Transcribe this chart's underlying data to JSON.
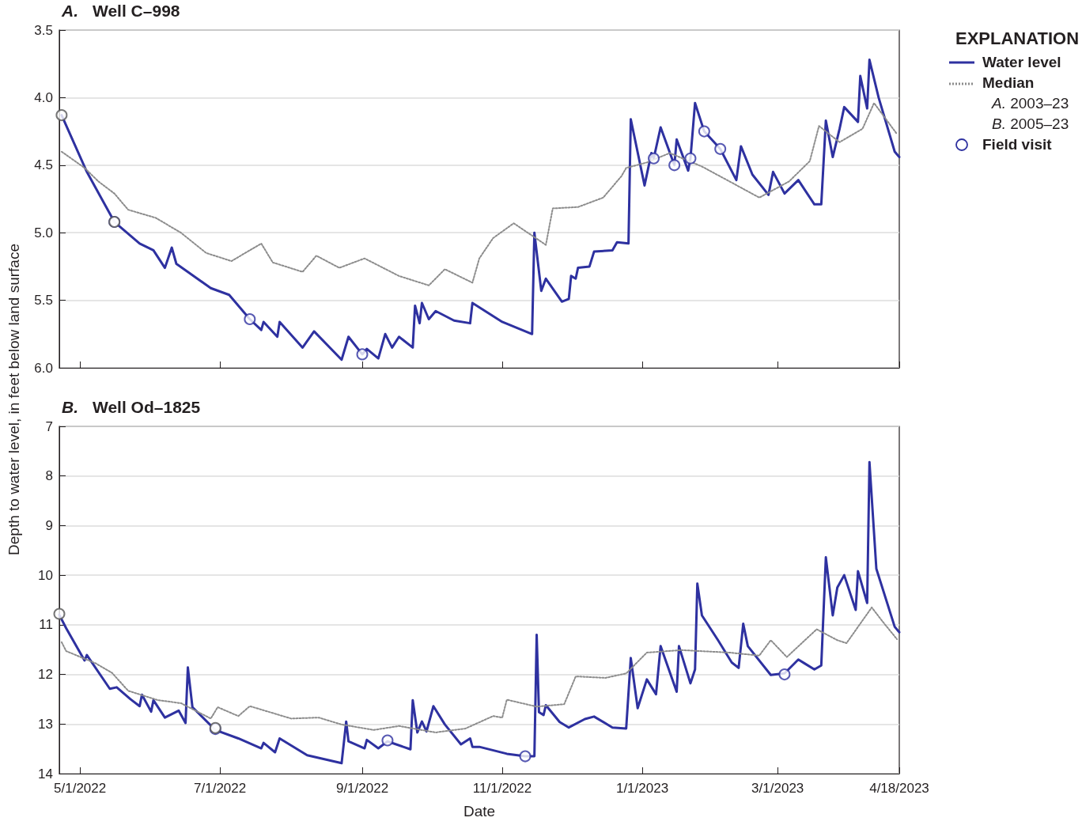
{
  "chart_data": [
    {
      "type": "line",
      "title": "A. Well C–998",
      "ylabel": "Depth to water level, in feet below land surface",
      "legend_title": "EXPLANATION",
      "legend": "right",
      "grid": "y",
      "tick_labels": "y",
      "annotations": [
        "A. 2003–23",
        "B. 2005–23"
      ],
      "xlim": [
        "2022-04-22",
        "2023-04-23"
      ],
      "xticks": [
        {
          "value": "2022-05-01",
          "label": null
        },
        {
          "value": "2022-07-01",
          "label": null
        },
        {
          "value": "2022-09-01",
          "label": null
        },
        {
          "value": "2022-11-01",
          "label": null
        },
        {
          "value": "2023-01-01",
          "label": null
        },
        {
          "value": "2023-03-01",
          "label": null
        },
        {
          "value": "2023-04-23",
          "label": null
        }
      ],
      "ylim": [
        6.0,
        3.5
      ],
      "yticks": [
        3.5,
        {
          "value": 4,
          "label": "4.0"
        },
        4.5,
        {
          "value": 5,
          "label": "5.0"
        },
        5.5,
        {
          "value": 6,
          "label": "6.0"
        }
      ],
      "series": [
        {
          "name": "Water level",
          "color": "#2e31a0",
          "line_style": "solid",
          "marker": "none",
          "x": [
            "2022-04-23",
            "2022-05-04",
            "2022-05-16",
            "2022-05-27",
            "2022-06-02",
            "2022-06-07",
            "2022-06-10",
            "2022-06-12",
            "2022-06-17",
            "2022-06-27",
            "2022-07-05",
            "2022-07-14",
            "2022-07-19",
            "2022-07-20",
            "2022-07-26",
            "2022-07-27",
            "2022-08-06",
            "2022-08-11",
            "2022-08-23",
            "2022-08-26",
            "2022-09-01",
            "2022-09-03",
            "2022-09-08",
            "2022-09-11",
            "2022-09-14",
            "2022-09-17",
            "2022-09-23",
            "2022-09-24",
            "2022-09-26",
            "2022-09-27",
            "2022-09-30",
            "2022-10-03",
            "2022-10-11",
            "2022-10-18",
            "2022-10-19",
            "2022-11-01",
            "2022-11-14",
            "2022-11-15",
            "2022-11-18",
            "2022-11-20",
            "2022-11-27",
            "2022-11-30",
            "2022-12-01",
            "2022-12-03",
            "2022-12-04",
            "2022-12-09",
            "2022-12-11",
            "2022-12-19",
            "2022-12-21",
            "2022-12-26",
            "2022-12-27",
            "2023-01-02",
            "2023-01-05",
            "2023-01-06",
            "2023-01-09",
            "2023-01-15",
            "2023-01-16",
            "2023-01-21",
            "2023-01-22",
            "2023-01-24",
            "2023-01-28",
            "2023-02-04",
            "2023-02-11",
            "2023-02-13",
            "2023-02-18",
            "2023-02-25",
            "2023-02-27",
            "2023-03-04",
            "2023-03-10",
            "2023-03-17",
            "2023-03-20",
            "2023-03-22",
            "2023-03-25",
            "2023-03-28",
            "2023-03-30",
            "2023-04-05",
            "2023-04-06",
            "2023-04-09",
            "2023-04-10",
            "2023-04-14",
            "2023-04-21",
            "2023-04-23"
          ],
          "values": [
            4.13,
            4.55,
            4.92,
            5.08,
            5.13,
            5.26,
            5.11,
            5.23,
            5.29,
            5.41,
            5.46,
            5.64,
            5.72,
            5.66,
            5.77,
            5.66,
            5.85,
            5.73,
            5.94,
            5.77,
            5.9,
            5.86,
            5.93,
            5.75,
            5.85,
            5.77,
            5.85,
            5.54,
            5.67,
            5.52,
            5.64,
            5.58,
            5.65,
            5.67,
            5.52,
            5.66,
            5.75,
            5.0,
            5.43,
            5.34,
            5.51,
            5.49,
            5.32,
            5.34,
            5.26,
            5.25,
            5.14,
            5.13,
            5.07,
            5.08,
            4.16,
            4.65,
            4.41,
            4.45,
            4.22,
            4.5,
            4.31,
            4.54,
            4.45,
            4.04,
            4.25,
            4.38,
            4.61,
            4.36,
            4.57,
            4.72,
            4.55,
            4.71,
            4.61,
            4.79,
            4.79,
            4.17,
            4.44,
            4.23,
            4.07,
            4.18,
            3.84,
            4.08,
            3.72,
            4.0,
            4.4,
            4.44
          ]
        },
        {
          "name": "Median",
          "color": "#8c8c8c",
          "line_style": "dotted",
          "marker": "none",
          "x": [
            "2022-04-23",
            "2022-05-03",
            "2022-05-09",
            "2022-05-16",
            "2022-05-22",
            "2022-06-03",
            "2022-06-14",
            "2022-06-25",
            "2022-07-06",
            "2022-07-19",
            "2022-07-24",
            "2022-08-06",
            "2022-08-12",
            "2022-08-22",
            "2022-09-02",
            "2022-09-17",
            "2022-09-30",
            "2022-10-07",
            "2022-10-19",
            "2022-10-22",
            "2022-10-28",
            "2022-11-06",
            "2022-11-20",
            "2022-11-23",
            "2022-12-04",
            "2022-12-15",
            "2022-12-23",
            "2022-12-25",
            "2023-01-03",
            "2023-01-13",
            "2023-01-27",
            "2023-02-08",
            "2023-02-21",
            "2023-03-06",
            "2023-03-15",
            "2023-03-19",
            "2023-03-28",
            "2023-04-07",
            "2023-04-12",
            "2023-04-22"
          ],
          "values": [
            4.4,
            4.52,
            4.62,
            4.71,
            4.83,
            4.89,
            5.0,
            5.15,
            5.21,
            5.08,
            5.22,
            5.29,
            5.17,
            5.26,
            5.19,
            5.32,
            5.39,
            5.27,
            5.37,
            5.19,
            5.04,
            4.93,
            5.09,
            4.82,
            4.81,
            4.74,
            4.58,
            4.52,
            4.48,
            4.41,
            4.51,
            4.62,
            4.74,
            4.62,
            4.47,
            4.21,
            4.33,
            4.23,
            4.04,
            4.27
          ]
        },
        {
          "name": "Field visit",
          "type": "scatter",
          "color": "#2e31a0",
          "marker": "circle",
          "x": [
            "2022-05-16",
            "2022-07-14",
            "2022-09-01",
            "2023-01-06",
            "2023-01-15",
            "2023-01-22",
            "2023-01-28",
            "2023-02-04"
          ],
          "values": [
            4.92,
            5.64,
            5.9,
            4.45,
            4.5,
            4.45,
            4.25,
            4.38
          ]
        },
        {
          "type": "scatter",
          "color": "#555555",
          "marker": "circle",
          "x": [
            "2022-04-23",
            "2022-05-16"
          ],
          "values": [
            4.13,
            4.92
          ]
        }
      ]
    },
    {
      "type": "line",
      "title": "B. Well Od–1825",
      "xlabel": "Date",
      "grid": "y",
      "xlim": [
        "2022-04-22",
        "2023-04-23"
      ],
      "xticks": [
        {
          "value": "2022-05-01",
          "label": "5/1/2022"
        },
        {
          "value": "2022-07-01",
          "label": "7/1/2022"
        },
        {
          "value": "2022-09-01",
          "label": "9/1/2022"
        },
        {
          "value": "2022-11-01",
          "label": "11/1/2022"
        },
        {
          "value": "2023-01-01",
          "label": "1/1/2023"
        },
        {
          "value": "2023-03-01",
          "label": "3/1/2023"
        },
        {
          "value": "2023-04-23",
          "label": "4/18/2023"
        }
      ],
      "ylim": [
        14,
        7
      ],
      "yticks": [
        7,
        8,
        9,
        10,
        11,
        12,
        13,
        14
      ],
      "series": [
        {
          "color": "#2e31a0",
          "line_style": "solid",
          "marker": "none",
          "x": [
            "2022-04-22",
            "2022-04-25",
            "2022-05-03",
            "2022-05-04",
            "2022-05-14",
            "2022-05-17",
            "2022-05-23",
            "2022-05-27",
            "2022-05-28",
            "2022-06-01",
            "2022-06-02",
            "2022-06-07",
            "2022-06-13",
            "2022-06-16",
            "2022-06-17",
            "2022-06-19",
            "2022-06-29",
            "2022-07-09",
            "2022-07-19",
            "2022-07-20",
            "2022-07-25",
            "2022-07-27",
            "2022-08-08",
            "2022-08-23",
            "2022-08-25",
            "2022-08-26",
            "2022-09-02",
            "2022-09-03",
            "2022-09-08",
            "2022-09-12",
            "2022-09-22",
            "2022-09-23",
            "2022-09-25",
            "2022-09-27",
            "2022-09-29",
            "2022-10-02",
            "2022-10-07",
            "2022-10-14",
            "2022-10-18",
            "2022-10-19",
            "2022-10-22",
            "2022-11-03",
            "2022-11-11",
            "2022-11-15",
            "2022-11-16",
            "2022-11-17",
            "2022-11-19",
            "2022-11-20",
            "2022-11-26",
            "2022-11-30",
            "2022-12-07",
            "2022-12-11",
            "2022-12-19",
            "2022-12-25",
            "2022-12-27",
            "2022-12-30",
            "2023-01-03",
            "2023-01-07",
            "2023-01-09",
            "2023-01-16",
            "2023-01-17",
            "2023-01-22",
            "2023-01-24",
            "2023-01-25",
            "2023-01-27",
            "2023-02-03",
            "2023-02-09",
            "2023-02-12",
            "2023-02-14",
            "2023-02-16",
            "2023-02-26",
            "2023-03-04",
            "2023-03-10",
            "2023-03-17",
            "2023-03-20",
            "2023-03-22",
            "2023-03-25",
            "2023-03-27",
            "2023-03-30",
            "2023-04-04",
            "2023-04-05",
            "2023-04-09",
            "2023-04-10",
            "2023-04-13",
            "2023-04-21",
            "2023-04-23"
          ],
          "values": [
            10.8,
            11.07,
            11.72,
            11.61,
            12.29,
            12.26,
            12.5,
            12.64,
            12.41,
            12.75,
            12.52,
            12.87,
            12.73,
            12.98,
            11.86,
            12.66,
            13.12,
            13.29,
            13.49,
            13.38,
            13.57,
            13.29,
            13.63,
            13.79,
            12.95,
            13.35,
            13.49,
            13.32,
            13.49,
            13.35,
            13.51,
            12.52,
            13.17,
            12.95,
            13.15,
            12.64,
            13.01,
            13.41,
            13.29,
            13.46,
            13.46,
            13.6,
            13.65,
            13.65,
            11.2,
            12.76,
            12.82,
            12.62,
            12.96,
            13.07,
            12.9,
            12.85,
            13.07,
            13.09,
            11.67,
            12.68,
            12.1,
            12.4,
            11.43,
            12.35,
            11.43,
            12.18,
            11.9,
            10.17,
            10.81,
            11.31,
            11.76,
            11.87,
            10.98,
            11.43,
            12.01,
            11.98,
            11.7,
            11.9,
            11.82,
            9.64,
            10.81,
            10.25,
            10.0,
            10.7,
            9.92,
            10.56,
            7.72,
            9.87,
            11.04,
            11.15
          ]
        },
        {
          "color": "#8c8c8c",
          "line_style": "dotted",
          "marker": "none",
          "x": [
            "2022-04-23",
            "2022-04-25",
            "2022-05-08",
            "2022-05-15",
            "2022-05-22",
            "2022-06-04",
            "2022-06-14",
            "2022-06-27",
            "2022-06-30",
            "2022-07-09",
            "2022-07-14",
            "2022-08-01",
            "2022-08-13",
            "2022-08-23",
            "2022-09-06",
            "2022-09-17",
            "2022-10-03",
            "2022-10-16",
            "2022-10-28",
            "2022-11-01",
            "2022-11-03",
            "2022-11-16",
            "2022-11-28",
            "2022-12-03",
            "2022-12-16",
            "2022-12-25",
            "2023-01-03",
            "2023-01-18",
            "2023-02-08",
            "2023-02-21",
            "2023-02-26",
            "2023-03-05",
            "2023-03-18",
            "2023-03-27",
            "2023-03-31",
            "2023-04-11",
            "2023-04-16",
            "2023-04-22"
          ],
          "values": [
            11.35,
            11.53,
            11.78,
            11.97,
            12.33,
            12.52,
            12.58,
            12.89,
            12.66,
            12.84,
            12.64,
            12.89,
            12.87,
            13.01,
            13.12,
            13.04,
            13.17,
            13.09,
            12.84,
            12.87,
            12.51,
            12.65,
            12.6,
            12.04,
            12.07,
            11.98,
            11.56,
            11.51,
            11.56,
            11.62,
            11.31,
            11.65,
            11.09,
            11.31,
            11.37,
            10.65,
            10.95,
            11.29
          ]
        },
        {
          "type": "scatter",
          "color": "#2e31a0",
          "marker": "circle",
          "x": [
            "2022-06-29",
            "2022-09-12",
            "2022-11-11",
            "2023-03-04"
          ],
          "values": [
            13.1,
            13.33,
            13.65,
            12.0
          ]
        },
        {
          "type": "scatter",
          "color": "#555555",
          "marker": "circle",
          "x": [
            "2022-04-22",
            "2022-06-29"
          ],
          "values": [
            10.78,
            13.08
          ]
        }
      ]
    }
  ]
}
